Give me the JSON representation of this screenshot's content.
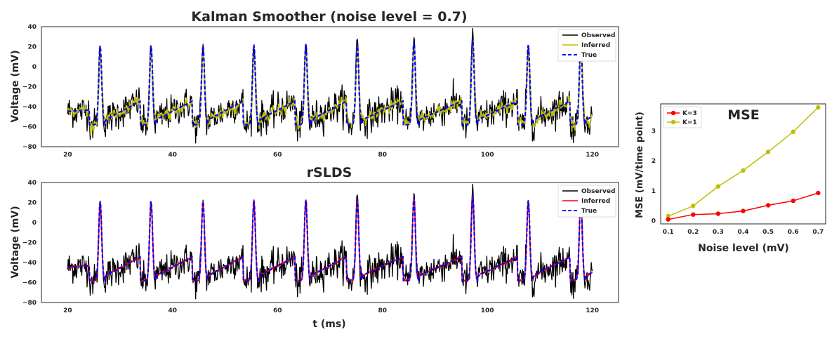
{
  "colors": {
    "observed": "#000000",
    "kalman_inferred": "#bfbf00",
    "rslds_inferred": "#ff0000",
    "true": "#0000ff",
    "k3": "#ff0000",
    "k1": "#bfbf00"
  },
  "chart_data": [
    {
      "type": "line",
      "title": "Kalman Smoother (noise level = 0.7)",
      "xlabel": "",
      "ylabel": "Voltage (mV)",
      "xlim": [
        15,
        125
      ],
      "ylim": [
        -80,
        40
      ],
      "xticks": [
        "20",
        "40",
        "60",
        "80",
        "100",
        "120"
      ],
      "yticks": [
        "40",
        "20",
        "0",
        "−20",
        "−40",
        "−60",
        "−80"
      ],
      "legend_position": "top-right",
      "series": [
        {
          "name": "Observed",
          "style": "solid"
        },
        {
          "name": "Inferred",
          "style": "solid"
        },
        {
          "name": "True",
          "style": "dashed"
        }
      ],
      "x_range": [
        20,
        120
      ],
      "spike_times_ms": [
        26.2,
        35.9,
        45.8,
        55.5,
        65.4,
        75.2,
        86.0,
        97.2,
        107.8,
        117.8
      ],
      "spike_peaks_mV": [
        21,
        21,
        21,
        22,
        22,
        23,
        25,
        27,
        22,
        23
      ],
      "observed_peaks_mV": [
        19,
        19,
        21,
        20,
        23,
        30,
        30,
        35,
        20,
        27
      ],
      "baseline_mV": [
        -48,
        -35
      ],
      "trough_mV": -58,
      "observed_noise_mV": 8
    },
    {
      "type": "line",
      "title": "rSLDS",
      "xlabel": "t (ms)",
      "ylabel": "Voltage (mV)",
      "xlim": [
        15,
        125
      ],
      "ylim": [
        -80,
        40
      ],
      "xticks": [
        "20",
        "40",
        "60",
        "80",
        "100",
        "120"
      ],
      "yticks": [
        "40",
        "20",
        "0",
        "−20",
        "−40",
        "−60",
        "−80"
      ],
      "legend_position": "top-right",
      "series": [
        {
          "name": "Observed",
          "style": "solid"
        },
        {
          "name": "Inferred",
          "style": "solid"
        },
        {
          "name": "True",
          "style": "dashed"
        }
      ]
    },
    {
      "type": "line",
      "title": "MSE",
      "xlabel": "Noise level (mV)",
      "ylabel": "MSE (mV/time point)",
      "x": [
        0.1,
        0.2,
        0.3,
        0.4,
        0.5,
        0.6,
        0.7
      ],
      "xticks": [
        "0.1",
        "0.2",
        "0.3",
        "0.4",
        "0.5",
        "0.6",
        "0.7"
      ],
      "yticks": [
        "0",
        "1",
        "2",
        "3"
      ],
      "xlim": [
        0.07,
        0.73
      ],
      "ylim": [
        -0.1,
        3.9
      ],
      "legend_position": "top-left",
      "series": [
        {
          "name": "K=3",
          "values": [
            0.05,
            0.21,
            0.24,
            0.33,
            0.52,
            0.67,
            0.93
          ]
        },
        {
          "name": "K=1",
          "values": [
            0.16,
            0.5,
            1.15,
            1.68,
            2.3,
            2.97,
            3.78
          ]
        }
      ]
    }
  ]
}
